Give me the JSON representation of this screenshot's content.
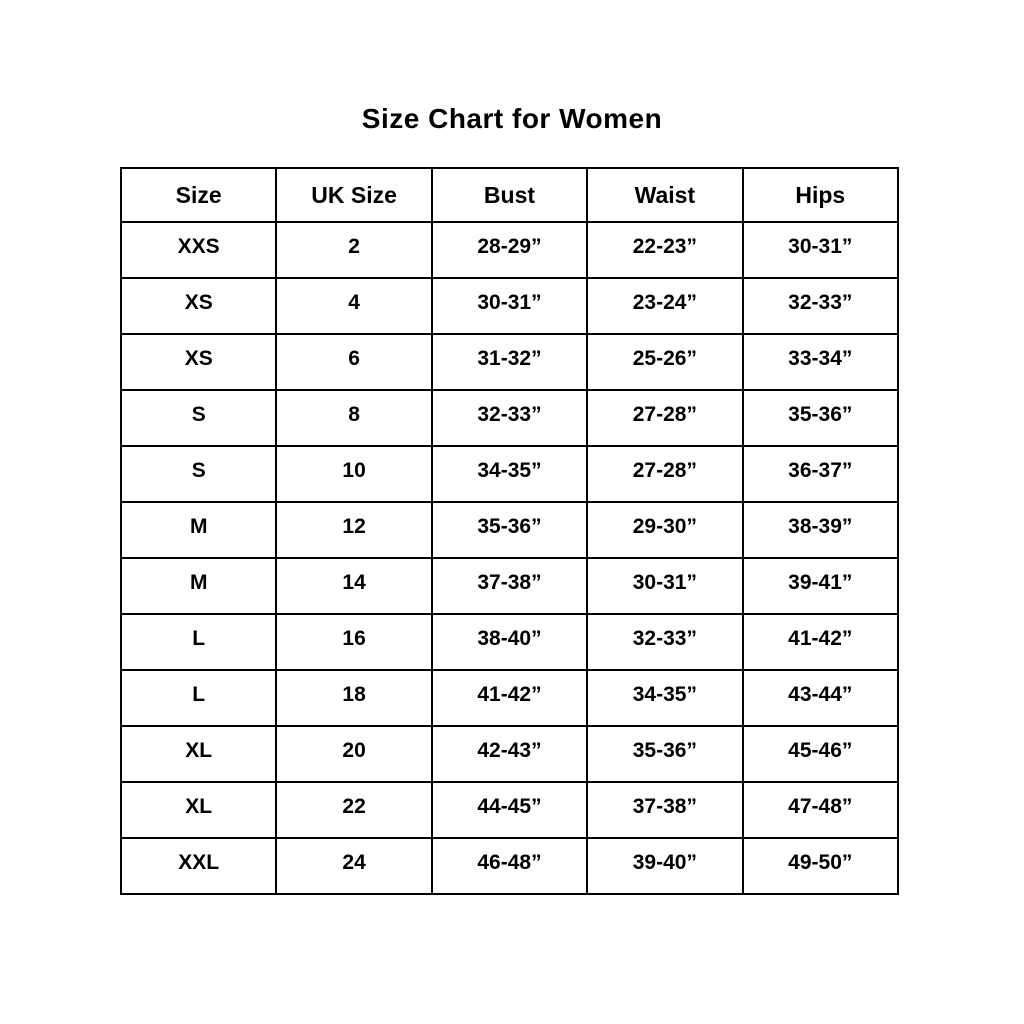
{
  "title": "Size Chart for Women",
  "chart_data": {
    "type": "table",
    "title": "Size Chart for Women",
    "columns": [
      "Size",
      "UK Size",
      "Bust",
      "Waist",
      "Hips"
    ],
    "rows": [
      [
        "XXS",
        "2",
        "28-29”",
        "22-23”",
        "30-31”"
      ],
      [
        "XS",
        "4",
        "30-31”",
        "23-24”",
        "32-33”"
      ],
      [
        "XS",
        "6",
        "31-32”",
        "25-26”",
        "33-34”"
      ],
      [
        "S",
        "8",
        "32-33”",
        "27-28”",
        "35-36”"
      ],
      [
        "S",
        "10",
        "34-35”",
        "27-28”",
        "36-37”"
      ],
      [
        "M",
        "12",
        "35-36”",
        "29-30”",
        "38-39”"
      ],
      [
        "M",
        "14",
        "37-38”",
        "30-31”",
        "39-41”"
      ],
      [
        "L",
        "16",
        "38-40”",
        "32-33”",
        "41-42”"
      ],
      [
        "L",
        "18",
        "41-42”",
        "34-35”",
        "43-44”"
      ],
      [
        "XL",
        "20",
        "42-43”",
        "35-36”",
        "45-46”"
      ],
      [
        "XL",
        "22",
        "44-45”",
        "37-38”",
        "47-48”"
      ],
      [
        "XXL",
        "24",
        "46-48”",
        "39-40”",
        "49-50”"
      ]
    ],
    "colors": {
      "border": "#000000",
      "text": "#000000",
      "background": "#ffffff"
    }
  }
}
